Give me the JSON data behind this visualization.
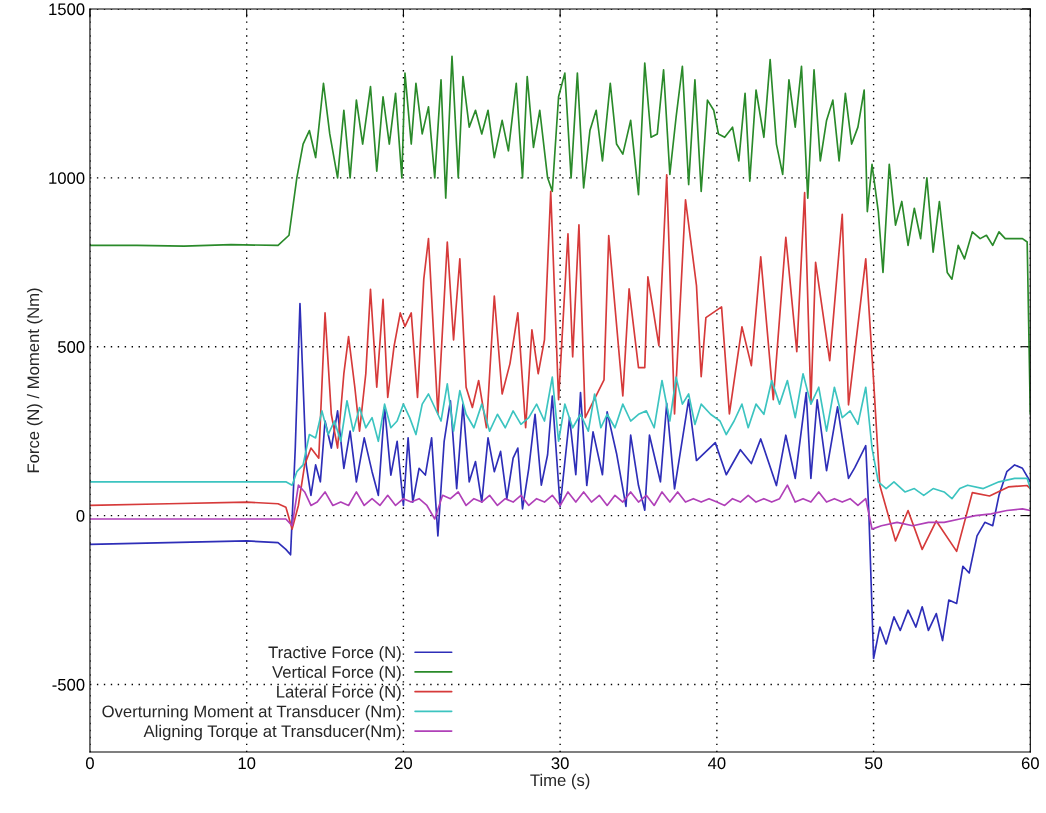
{
  "chart_data": {
    "type": "line",
    "xlabel": "Time (s)",
    "ylabel": "Force (N) / Moment (Nm)",
    "xlim": [
      0,
      60
    ],
    "ylim": [
      -700,
      1500
    ],
    "xticks": [
      0,
      10,
      20,
      30,
      40,
      50,
      60
    ],
    "yticks": [
      -500,
      0,
      500,
      1000,
      1500
    ],
    "grid": true,
    "legend": "bottom left",
    "line_style": "solid",
    "series": [
      {
        "name": "Tractive Force (N)",
        "color": "#2e2eb8",
        "x": [
          0,
          5,
          10,
          12,
          12.5,
          12.8,
          13.1,
          13.4,
          13.8,
          14.1,
          14.4,
          14.7,
          15,
          15.4,
          15.8,
          16.2,
          16.6,
          17,
          17.5,
          18,
          18.4,
          18.8,
          19.2,
          19.6,
          20,
          20.3,
          20.6,
          21,
          21.4,
          21.8,
          22.2,
          22.6,
          23,
          23.4,
          23.8,
          24.2,
          24.6,
          25,
          25.4,
          25.8,
          26.2,
          26.6,
          27,
          27.3,
          27.6,
          28,
          28.4,
          28.8,
          29.2,
          29.5,
          30,
          30.6,
          31,
          31.3,
          31.7,
          32.1,
          32.7,
          33,
          33.6,
          34.2,
          34.5,
          35,
          35.4,
          35.7,
          36.4,
          36.8,
          37.3,
          38.2,
          38.7,
          39.9,
          40.6,
          41.5,
          42.2,
          42.8,
          43.8,
          44.4,
          45,
          45.7,
          46,
          46.4,
          47,
          47.7,
          48.4,
          48.8,
          49.5,
          49.7,
          50,
          50.4,
          50.8,
          51.3,
          51.7,
          52.2,
          52.7,
          53.1,
          53.5,
          54,
          54.4,
          54.8,
          55.3,
          55.7,
          56.1,
          56.6,
          57.1,
          57.6,
          58,
          58.5,
          59,
          59.5,
          60
        ],
        "values": [
          -85,
          -80,
          -75,
          -80,
          -100,
          -116,
          200,
          628,
          150,
          60,
          150,
          100,
          280,
          200,
          310,
          140,
          250,
          100,
          230,
          130,
          60,
          320,
          120,
          220,
          30,
          230,
          40,
          140,
          120,
          230,
          -60,
          220,
          340,
          80,
          330,
          100,
          160,
          40,
          230,
          130,
          190,
          50,
          170,
          200,
          20,
          140,
          300,
          90,
          180,
          354,
          27,
          290,
          121,
          364,
          89,
          248,
          121,
          307,
          184,
          27,
          238,
          89,
          16,
          238,
          100,
          332,
          79,
          343,
          163,
          216,
          121,
          195,
          154,
          227,
          89,
          238,
          110,
          364,
          110,
          343,
          133,
          322,
          110,
          142,
          207,
          6,
          -423,
          -330,
          -380,
          -300,
          -340,
          -280,
          -330,
          -270,
          -340,
          -290,
          -370,
          -250,
          -260,
          -150,
          -170,
          -60,
          -20,
          -30,
          60,
          130,
          150,
          140,
          100
        ]
      },
      {
        "name": "Vertical Force (N)",
        "color": "#2a8a2a",
        "x": [
          0,
          3,
          6,
          9,
          12,
          12.7,
          13.2,
          13.6,
          14,
          14.4,
          14.9,
          15.3,
          15.8,
          16.2,
          16.6,
          17,
          17.4,
          17.9,
          18.3,
          18.7,
          19.1,
          19.5,
          19.9,
          20.1,
          20.5,
          20.8,
          21.2,
          21.6,
          22,
          22.4,
          22.7,
          23.1,
          23.5,
          23.8,
          24.2,
          24.6,
          25,
          25.4,
          25.8,
          26.3,
          26.7,
          27.2,
          27.6,
          27.9,
          28.3,
          28.7,
          29.2,
          29.5,
          29.9,
          30.3,
          30.7,
          31.1,
          31.5,
          31.9,
          32.3,
          32.7,
          33.2,
          33.6,
          34,
          34.5,
          35,
          35.4,
          35.8,
          36.2,
          36.6,
          37,
          37.4,
          37.8,
          38.2,
          38.6,
          39,
          39.4,
          39.8,
          40.1,
          40.5,
          41,
          41.4,
          41.8,
          42.1,
          42.5,
          43,
          43.4,
          43.8,
          44.2,
          44.6,
          45,
          45.4,
          45.8,
          46.2,
          46.6,
          47,
          47.4,
          47.8,
          48.2,
          48.6,
          49,
          49.4,
          49.6,
          49.9,
          50.3,
          50.6,
          51,
          51.4,
          51.8,
          52.2,
          52.6,
          53,
          53.4,
          53.8,
          54.2,
          54.7,
          55,
          55.4,
          55.8,
          56.3,
          56.8,
          57.2,
          57.6,
          58,
          58.4,
          59.5,
          59.8,
          60
        ],
        "values": [
          800,
          800,
          798,
          802,
          800,
          830,
          1000,
          1100,
          1140,
          1060,
          1280,
          1130,
          1000,
          1200,
          1000,
          1230,
          1100,
          1270,
          1020,
          1240,
          1100,
          1250,
          1000,
          1310,
          1100,
          1280,
          1130,
          1210,
          1000,
          1290,
          940,
          1360,
          1000,
          1300,
          1150,
          1200,
          1130,
          1200,
          1060,
          1170,
          1080,
          1280,
          1000,
          1300,
          1090,
          1200,
          1000,
          960,
          1240,
          1310,
          1000,
          1310,
          970,
          1140,
          1200,
          1050,
          1280,
          1100,
          1070,
          1170,
          950,
          1340,
          1120,
          1130,
          1320,
          1010,
          1180,
          1330,
          980,
          1290,
          960,
          1230,
          1200,
          1130,
          1120,
          1150,
          1050,
          1250,
          990,
          1260,
          1120,
          1350,
          1100,
          1010,
          1290,
          1150,
          1330,
          940,
          1320,
          1050,
          1170,
          1230,
          1050,
          1250,
          1100,
          1150,
          1260,
          900,
          1040,
          900,
          720,
          1040,
          860,
          930,
          800,
          910,
          820,
          1000,
          780,
          930,
          720,
          700,
          800,
          760,
          840,
          820,
          830,
          800,
          840,
          820,
          820,
          810,
          300
        ]
      },
      {
        "name": "Lateral Force (N)",
        "color": "#d63a3a",
        "x": [
          0,
          5,
          10,
          12,
          12.5,
          12.9,
          13.3,
          13.7,
          14.1,
          14.6,
          15,
          15.4,
          15.8,
          16.2,
          16.5,
          16.9,
          17.2,
          17.6,
          17.9,
          18.3,
          18.7,
          19,
          19.4,
          19.8,
          20.1,
          20.5,
          20.9,
          21.3,
          21.6,
          22.2,
          22.8,
          23.2,
          23.6,
          24,
          24.4,
          24.8,
          25.3,
          25.8,
          26.3,
          26.8,
          27.3,
          27.8,
          28.2,
          28.6,
          29,
          29.4,
          29.9,
          30.5,
          30.8,
          31.2,
          31.6,
          32.8,
          33.1,
          34,
          34.4,
          35,
          35.4,
          35.6,
          36.3,
          36.8,
          37.3,
          38,
          38.7,
          39,
          39.3,
          40.3,
          40.8,
          41.6,
          42.2,
          42.8,
          43.6,
          44.4,
          45.1,
          45.6,
          46,
          46.3,
          47.2,
          48,
          48.4,
          49.5,
          50,
          50.4,
          51.4,
          52.2,
          53.1,
          54,
          55.3,
          56.3,
          57.4,
          58.6,
          59.8,
          60
        ],
        "values": [
          30,
          35,
          40,
          35,
          25,
          -40,
          30,
          150,
          200,
          170,
          600,
          300,
          200,
          420,
          530,
          380,
          250,
          420,
          670,
          380,
          640,
          350,
          500,
          600,
          560,
          600,
          350,
          700,
          820,
          300,
          810,
          520,
          760,
          380,
          320,
          400,
          260,
          650,
          360,
          450,
          600,
          260,
          550,
          420,
          520,
          960,
          343,
          834,
          470,
          861,
          290,
          402,
          829,
          354,
          671,
          438,
          438,
          707,
          503,
          1009,
          301,
          935,
          681,
          411,
          586,
          618,
          301,
          559,
          444,
          766,
          343,
          824,
          485,
          956,
          331,
          750,
          459,
          892,
          328,
          760,
          400,
          89,
          -75,
          15,
          -100,
          -16,
          -106,
          68,
          58,
          85,
          89,
          80
        ]
      },
      {
        "name": "Overturning Moment at Transducer (Nm)",
        "color": "#3cc4c0",
        "x": [
          0,
          12.5,
          12.9,
          13.2,
          13.6,
          14,
          14.4,
          14.8,
          15.2,
          15.6,
          16,
          16.4,
          16.8,
          17.2,
          17.6,
          18,
          18.4,
          18.8,
          19.2,
          19.6,
          20,
          20.4,
          20.8,
          21.2,
          21.6,
          22,
          22.4,
          22.8,
          23.2,
          23.6,
          24,
          24.5,
          25,
          25.5,
          26,
          26.5,
          27,
          27.5,
          28,
          28.5,
          29,
          29.5,
          29.9,
          30.3,
          30.8,
          31.3,
          31.8,
          32.2,
          32.6,
          33,
          33.5,
          34,
          34.5,
          35,
          35.5,
          36,
          36.5,
          37,
          37.4,
          37.8,
          38.2,
          38.6,
          39,
          39.6,
          40.2,
          40.6,
          41.1,
          41.6,
          42,
          42.5,
          43,
          43.5,
          44,
          44.5,
          45,
          45.5,
          46,
          46.5,
          47,
          47.5,
          48,
          48.5,
          49,
          49.5,
          49.9,
          50.3,
          50.8,
          51.3,
          52,
          52.6,
          53.2,
          53.8,
          54.5,
          55,
          55.5,
          56,
          57,
          58,
          59,
          59.8,
          60
        ],
        "values": [
          100,
          100,
          90,
          130,
          150,
          240,
          230,
          310,
          240,
          280,
          220,
          340,
          250,
          320,
          260,
          290,
          220,
          330,
          260,
          280,
          330,
          290,
          240,
          330,
          360,
          320,
          280,
          390,
          250,
          370,
          300,
          260,
          330,
          250,
          300,
          260,
          310,
          270,
          290,
          330,
          280,
          410,
          220,
          330,
          260,
          300,
          250,
          360,
          260,
          300,
          260,
          330,
          280,
          300,
          310,
          260,
          400,
          280,
          410,
          330,
          360,
          270,
          330,
          300,
          280,
          240,
          280,
          330,
          260,
          330,
          300,
          400,
          330,
          400,
          290,
          420,
          330,
          380,
          250,
          380,
          290,
          310,
          270,
          380,
          200,
          100,
          80,
          100,
          70,
          80,
          60,
          80,
          70,
          50,
          80,
          90,
          80,
          100,
          110,
          110,
          80
        ]
      },
      {
        "name": "Aligning Torque at Transducer(Nm)",
        "color": "#b040b8",
        "x": [
          0,
          12.5,
          12.9,
          13.3,
          13.7,
          14.1,
          14.5,
          15,
          15.5,
          16,
          16.5,
          17,
          17.5,
          18,
          18.5,
          19,
          19.5,
          20,
          20.5,
          21,
          21.5,
          22,
          22.5,
          23,
          23.5,
          24,
          24.5,
          25,
          25.5,
          26,
          26.5,
          27,
          27.5,
          28,
          28.5,
          29,
          29.5,
          30,
          30.5,
          31,
          31.5,
          32,
          32.5,
          33,
          33.5,
          34,
          34.5,
          35,
          35.5,
          36,
          36.5,
          37,
          37.5,
          38,
          38.5,
          39,
          39.5,
          40,
          40.5,
          41,
          41.5,
          42,
          42.5,
          43,
          43.5,
          44,
          44.5,
          45,
          45.5,
          46,
          46.5,
          47,
          47.5,
          48,
          48.5,
          49,
          49.5,
          49.9,
          50.5,
          51.5,
          52.5,
          53.5,
          54.5,
          55.5,
          56.5,
          57.5,
          58.5,
          59.5,
          60
        ],
        "values": [
          -10,
          -10,
          -30,
          90,
          70,
          30,
          40,
          70,
          30,
          40,
          30,
          70,
          30,
          50,
          30,
          60,
          30,
          50,
          40,
          50,
          30,
          -10,
          60,
          50,
          70,
          30,
          50,
          40,
          60,
          30,
          50,
          40,
          60,
          30,
          50,
          40,
          60,
          30,
          70,
          40,
          70,
          40,
          60,
          30,
          60,
          40,
          70,
          40,
          60,
          30,
          70,
          40,
          70,
          40,
          50,
          40,
          50,
          40,
          30,
          50,
          40,
          60,
          40,
          50,
          40,
          50,
          90,
          40,
          50,
          40,
          70,
          40,
          50,
          40,
          50,
          30,
          50,
          -40,
          -30,
          -20,
          -30,
          -20,
          -20,
          -10,
          0,
          5,
          15,
          20,
          15
        ]
      }
    ]
  }
}
